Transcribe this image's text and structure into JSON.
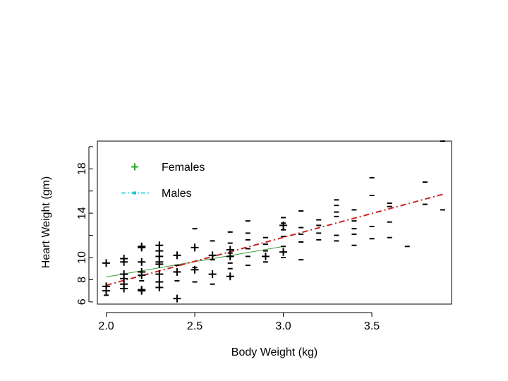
{
  "chart_data": {
    "type": "scatter",
    "title": "",
    "xlabel": "Body Weight (kg)",
    "ylabel": "Heart Weight (gm)",
    "xlim": [
      1.95,
      3.95
    ],
    "ylim": [
      5.8,
      20.5
    ],
    "x_ticks": [
      2.0,
      2.5,
      3.0,
      3.5
    ],
    "x_tick_labels": [
      "2.0",
      "2.5",
      "3.0",
      "3.5"
    ],
    "y_ticks": [
      6,
      8,
      10,
      14,
      18
    ],
    "y_tick_labels": [
      "6",
      "8",
      "10",
      "14",
      "18"
    ],
    "y_minor_ticks": [
      12,
      16,
      20
    ],
    "grid": false,
    "legend": {
      "position": "top-left"
    },
    "series": [
      {
        "name": "Females",
        "marker": "plus",
        "legend_color": "#22aa22",
        "points": [
          [
            2.0,
            7.0
          ],
          [
            2.0,
            7.4
          ],
          [
            2.0,
            9.5
          ],
          [
            2.1,
            7.2
          ],
          [
            2.1,
            7.6
          ],
          [
            2.1,
            8.1
          ],
          [
            2.1,
            8.5
          ],
          [
            2.1,
            9.6
          ],
          [
            2.1,
            9.9
          ],
          [
            2.2,
            7.0
          ],
          [
            2.2,
            7.1
          ],
          [
            2.2,
            8.4
          ],
          [
            2.2,
            8.7
          ],
          [
            2.2,
            9.6
          ],
          [
            2.2,
            10.9
          ],
          [
            2.2,
            11.0
          ],
          [
            2.3,
            7.3
          ],
          [
            2.3,
            7.8
          ],
          [
            2.3,
            8.5
          ],
          [
            2.3,
            9.4
          ],
          [
            2.3,
            9.6
          ],
          [
            2.3,
            10.1
          ],
          [
            2.3,
            10.6
          ],
          [
            2.3,
            11.1
          ],
          [
            2.4,
            6.3
          ],
          [
            2.4,
            8.7
          ],
          [
            2.4,
            10.2
          ],
          [
            2.5,
            8.9
          ],
          [
            2.5,
            10.9
          ],
          [
            2.6,
            8.5
          ],
          [
            2.6,
            10.2
          ],
          [
            2.7,
            8.3
          ],
          [
            2.7,
            10.1
          ],
          [
            2.7,
            10.7
          ],
          [
            2.9,
            10.1
          ],
          [
            3.0,
            10.5
          ],
          [
            3.0,
            12.9
          ]
        ]
      },
      {
        "name": "Males",
        "marker": "dash",
        "legend_color": "#00c8d8",
        "points": [
          [
            2.0,
            6.6
          ],
          [
            2.2,
            7.9
          ],
          [
            2.4,
            7.9
          ],
          [
            2.4,
            9.3
          ],
          [
            2.5,
            7.8
          ],
          [
            2.5,
            9.1
          ],
          [
            2.5,
            12.6
          ],
          [
            2.6,
            7.6
          ],
          [
            2.6,
            9.8
          ],
          [
            2.6,
            11.5
          ],
          [
            2.7,
            9.0
          ],
          [
            2.7,
            9.5
          ],
          [
            2.7,
            10.4
          ],
          [
            2.7,
            11.3
          ],
          [
            2.7,
            12.3
          ],
          [
            2.8,
            9.3
          ],
          [
            2.8,
            10.1
          ],
          [
            2.8,
            10.8
          ],
          [
            2.8,
            11.6
          ],
          [
            2.8,
            12.2
          ],
          [
            2.8,
            13.3
          ],
          [
            2.9,
            9.6
          ],
          [
            2.9,
            10.6
          ],
          [
            2.9,
            11.2
          ],
          [
            2.9,
            11.8
          ],
          [
            3.0,
            10.0
          ],
          [
            3.0,
            11.0
          ],
          [
            3.0,
            11.9
          ],
          [
            3.0,
            12.5
          ],
          [
            3.0,
            13.1
          ],
          [
            3.0,
            13.6
          ],
          [
            3.1,
            9.8
          ],
          [
            3.1,
            11.4
          ],
          [
            3.1,
            12.1
          ],
          [
            3.1,
            12.7
          ],
          [
            3.1,
            14.2
          ],
          [
            3.2,
            11.6
          ],
          [
            3.2,
            12.2
          ],
          [
            3.2,
            12.9
          ],
          [
            3.2,
            13.4
          ],
          [
            3.3,
            11.5
          ],
          [
            3.3,
            12.0
          ],
          [
            3.3,
            13.7
          ],
          [
            3.3,
            14.1
          ],
          [
            3.3,
            14.7
          ],
          [
            3.3,
            15.2
          ],
          [
            3.4,
            11.1
          ],
          [
            3.4,
            12.1
          ],
          [
            3.4,
            12.6
          ],
          [
            3.4,
            13.3
          ],
          [
            3.4,
            14.3
          ],
          [
            3.5,
            11.7
          ],
          [
            3.5,
            12.8
          ],
          [
            3.5,
            15.6
          ],
          [
            3.5,
            17.2
          ],
          [
            3.6,
            11.8
          ],
          [
            3.6,
            13.2
          ],
          [
            3.6,
            14.6
          ],
          [
            3.6,
            14.9
          ],
          [
            3.7,
            11.0
          ],
          [
            3.8,
            14.8
          ],
          [
            3.8,
            16.8
          ],
          [
            3.9,
            14.3
          ],
          [
            3.9,
            20.5
          ]
        ]
      }
    ],
    "fit_lines": [
      {
        "name": "Females fit",
        "color": "#3a9a3a",
        "style": "solid",
        "x": [
          2.0,
          3.0
        ],
        "y": [
          8.25,
          11.0
        ]
      },
      {
        "name": "Males fit",
        "color": "#cc2222",
        "style": "dashdot",
        "x": [
          2.0,
          3.9
        ],
        "y": [
          7.5,
          15.7
        ]
      }
    ]
  }
}
